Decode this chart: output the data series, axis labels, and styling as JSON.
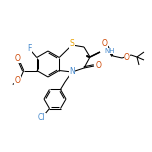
{
  "bg_color": "#ffffff",
  "bond_color": "#000000",
  "atom_colors": {
    "S": "#e8a000",
    "N": "#4488cc",
    "O": "#cc4400",
    "F": "#4488cc",
    "Cl": "#4488cc",
    "C": "#000000"
  },
  "figsize": [
    1.52,
    1.52
  ],
  "dpi": 100,
  "lw": 0.75,
  "fontsize": 5.0
}
